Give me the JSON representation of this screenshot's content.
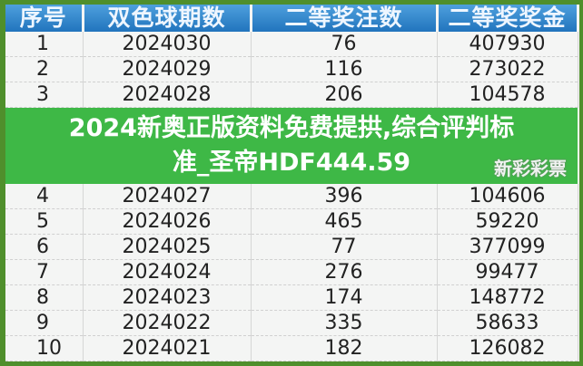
{
  "table": {
    "headers": [
      "序号",
      "双色球期数",
      "二等奖注数",
      "二等奖奖金"
    ],
    "rows": [
      [
        "1",
        "2024030",
        "76",
        "407930"
      ],
      [
        "2",
        "2024029",
        "116",
        "273022"
      ],
      [
        "3",
        "2024028",
        "206",
        "104578"
      ],
      [
        "4",
        "2024027",
        "396",
        "104606"
      ],
      [
        "5",
        "2024026",
        "465",
        "59220"
      ],
      [
        "6",
        "2024025",
        "77",
        "377099"
      ],
      [
        "7",
        "2024024",
        "276",
        "99477"
      ],
      [
        "8",
        "2024023",
        "174",
        "148772"
      ],
      [
        "9",
        "2024022",
        "335",
        "58633"
      ],
      [
        "10",
        "2024021",
        "182",
        "126082"
      ]
    ]
  },
  "banner": {
    "title": "2024新奥正版资料免费提拱,综合评判标准_圣帝HDF444.59"
  },
  "watermark": "新彩彩票",
  "colors": {
    "border": "#4f8f2c",
    "header": "#2174bd",
    "banner": "#34b43c"
  }
}
